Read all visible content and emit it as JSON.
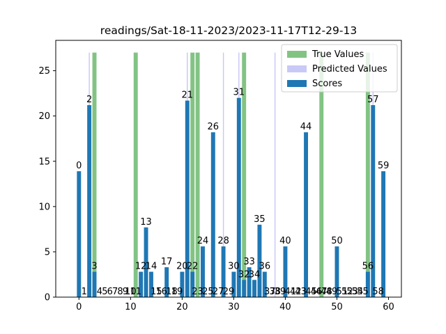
{
  "chart_data": {
    "type": "bar",
    "title": "readings/Sat-18-11-2023/2023-11-17T12-29-13",
    "xlabel": "",
    "ylabel": "",
    "xlim": [
      -4.5,
      62.5
    ],
    "ylim": [
      0,
      28.35
    ],
    "x_ticks": [
      0,
      10,
      20,
      30,
      40,
      50,
      60
    ],
    "y_ticks": [
      0,
      5,
      10,
      15,
      20,
      25
    ],
    "grid": false,
    "legend_position": "top-right",
    "series": [
      {
        "name": "True Values",
        "color": "#82c384",
        "bar_width": 0.8,
        "x": [
          3,
          11,
          22,
          23,
          32,
          47,
          56
        ],
        "values": [
          27,
          27,
          27,
          27,
          27,
          27,
          27
        ]
      },
      {
        "name": "Predicted Values",
        "color": "#c9c9f7",
        "bar_width": 0.2,
        "x": [
          2,
          21,
          28,
          31,
          38,
          57
        ],
        "values": [
          27,
          27,
          27,
          27,
          27,
          27
        ]
      },
      {
        "name": "Scores",
        "color": "#1f77b4",
        "bar_width": 0.8,
        "x": [
          0,
          1,
          2,
          3,
          4,
          5,
          6,
          7,
          8,
          9,
          10,
          11,
          12,
          13,
          14,
          15,
          16,
          17,
          18,
          19,
          20,
          21,
          22,
          23,
          24,
          25,
          26,
          27,
          28,
          29,
          30,
          31,
          32,
          33,
          34,
          35,
          36,
          37,
          38,
          39,
          40,
          41,
          42,
          43,
          44,
          45,
          46,
          47,
          48,
          49,
          50,
          51,
          52,
          53,
          54,
          55,
          56,
          57,
          58,
          59
        ],
        "values": [
          13.9,
          0,
          21.2,
          2.8,
          0,
          0,
          0,
          0,
          0,
          0,
          0,
          0,
          2.8,
          7.7,
          2.8,
          0,
          0,
          3.3,
          0,
          0,
          2.8,
          21.7,
          2.8,
          0,
          5.6,
          0,
          18.2,
          0,
          5.6,
          0,
          2.8,
          22.0,
          1.9,
          3.3,
          1.9,
          8.0,
          2.8,
          0,
          0,
          0,
          5.6,
          0,
          0,
          0,
          18.2,
          0,
          0,
          0,
          0,
          0,
          5.6,
          0,
          0,
          0,
          0,
          0,
          2.8,
          21.2,
          0,
          13.9
        ],
        "labels": [
          "0",
          "1",
          "2",
          "3",
          "4",
          "5",
          "6",
          "7",
          "8",
          "9",
          "10",
          "11",
          "12",
          "13",
          "14",
          "15",
          "16",
          "17",
          "18",
          "19",
          "20",
          "21",
          "22",
          "23",
          "24",
          "25",
          "26",
          "27",
          "28",
          "29",
          "30",
          "31",
          "32",
          "33",
          "34",
          "35",
          "36",
          "37",
          "38",
          "39",
          "40",
          "41",
          "42",
          "43",
          "44",
          "45",
          "46",
          "47",
          "48",
          "49",
          "50",
          "51",
          "52",
          "53",
          "54",
          "55",
          "56",
          "57",
          "58",
          "59"
        ]
      }
    ]
  }
}
